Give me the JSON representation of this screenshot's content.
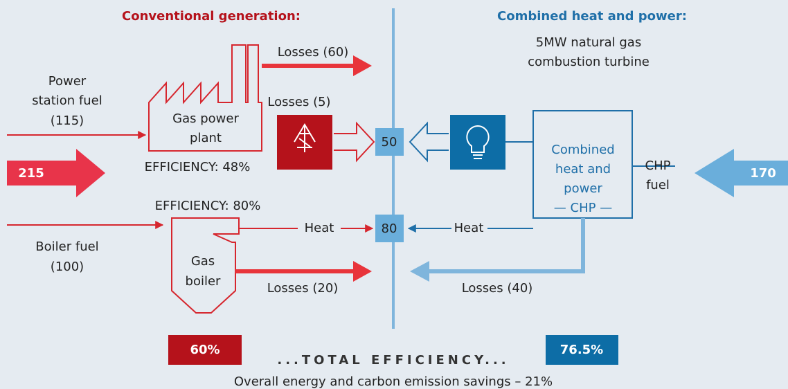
{
  "left": {
    "heading": "Conventional generation:",
    "power_fuel": [
      "Power",
      "station fuel",
      "(115)"
    ],
    "input_total": "215",
    "plant": [
      "Gas power",
      "plant"
    ],
    "plant_efficiency": "EFFICIENCY: 48%",
    "plant_losses_top": "Losses (60)",
    "plant_losses_line": "Losses (5)",
    "boiler_fuel": [
      "Boiler fuel",
      "(100)"
    ],
    "boiler_efficiency": "EFFICIENCY: 80%",
    "boiler": [
      "Gas",
      "boiler"
    ],
    "boiler_heat": "Heat",
    "boiler_losses": "Losses (20)",
    "total_efficiency": "60%"
  },
  "center": {
    "electricity": "50",
    "heat": "80",
    "total_label": "...TOTAL EFFICIENCY...",
    "footer": "Overall energy and carbon emission savings – 21%"
  },
  "right": {
    "heading": "Combined heat and power:",
    "subtitle": [
      "5MW natural gas",
      "combustion turbine"
    ],
    "chp": [
      "Combined",
      "heat and",
      "power",
      "— CHP —"
    ],
    "chp_fuel": [
      "CHP",
      "fuel"
    ],
    "input_total": "170",
    "heat": "Heat",
    "losses": "Losses (40)",
    "total_efficiency": "76.5%"
  }
}
